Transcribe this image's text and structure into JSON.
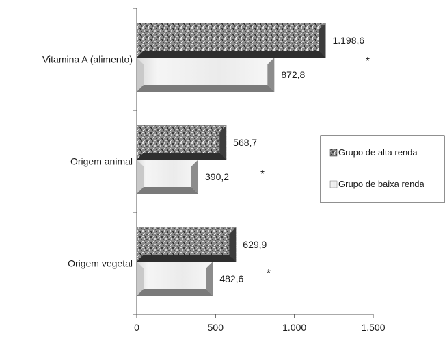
{
  "chart_data": {
    "type": "bar",
    "orientation": "horizontal",
    "title": "",
    "xlabel": "",
    "ylabel": "",
    "categories": [
      "Vitamina A (alimento)",
      "Origem animal",
      "Origem vegetal"
    ],
    "series": [
      {
        "name": "Grupo de alta renda",
        "values": [
          1198.6,
          568.7,
          629.9
        ],
        "labels": [
          "1.198,6",
          "568,7",
          "629,9"
        ]
      },
      {
        "name": "Grupo de baixa renda",
        "values": [
          872.8,
          390.2,
          482.6
        ],
        "labels": [
          "872,8",
          "390,2",
          "482,6"
        ]
      }
    ],
    "significance_marks": [
      "*",
      "*",
      "*"
    ],
    "xlim": [
      0,
      1500
    ],
    "xticks": [
      0,
      500,
      1000,
      1500
    ],
    "xtick_labels": [
      "0",
      "500",
      "1.000",
      "1.500"
    ],
    "grid": false,
    "legend_position": "right"
  }
}
